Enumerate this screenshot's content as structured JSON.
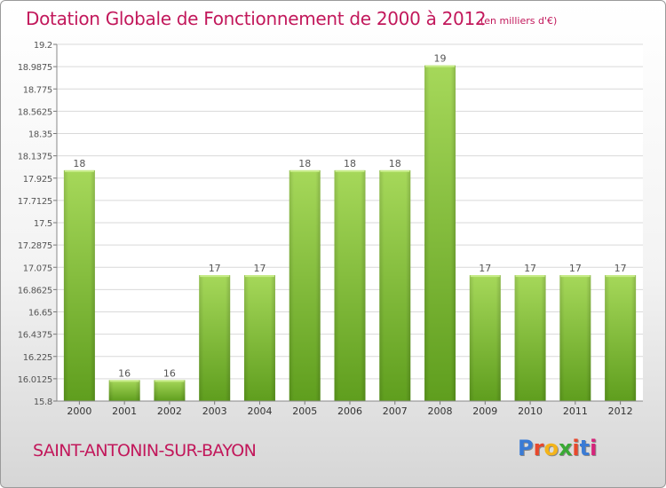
{
  "header": {
    "title": "Dotation Globale de Fonctionnement de 2000 à 2012",
    "subtitle": "(en milliers d'€)"
  },
  "footer": {
    "commune": "SAINT-ANTONIN-SUR-BAYON",
    "logo_text": "Proxiti",
    "logo_colors": [
      "#3a7bd5",
      "#e8482c",
      "#f4b41a",
      "#3aa935",
      "#e8482c",
      "#3a7bd5",
      "#d6247a"
    ]
  },
  "chart_data": {
    "type": "bar",
    "title": "Dotation Globale de Fonctionnement de 2000 à 2012",
    "subtitle": "(en milliers d'€)",
    "xlabel": "",
    "ylabel": "",
    "categories": [
      "2000",
      "2001",
      "2002",
      "2003",
      "2004",
      "2005",
      "2006",
      "2007",
      "2008",
      "2009",
      "2010",
      "2011",
      "2012"
    ],
    "values": [
      18,
      16,
      16,
      17,
      17,
      18,
      18,
      18,
      19,
      17,
      17,
      17,
      17
    ],
    "data_labels": [
      "18",
      "16",
      "16",
      "17",
      "17",
      "18",
      "18",
      "18",
      "19",
      "17",
      "17",
      "17",
      "17"
    ],
    "ylim": [
      15.8,
      19.2
    ],
    "yticks": [
      "15.8",
      "16.0125",
      "16.225",
      "16.4375",
      "16.65",
      "16.8625",
      "17.075",
      "17.2875",
      "17.5",
      "17.7125",
      "17.925",
      "18.1375",
      "18.35",
      "18.5625",
      "18.775",
      "18.9875",
      "19.2"
    ],
    "bar_color": "#8cc63f",
    "plot_background": "#ffffff",
    "grid": true
  }
}
